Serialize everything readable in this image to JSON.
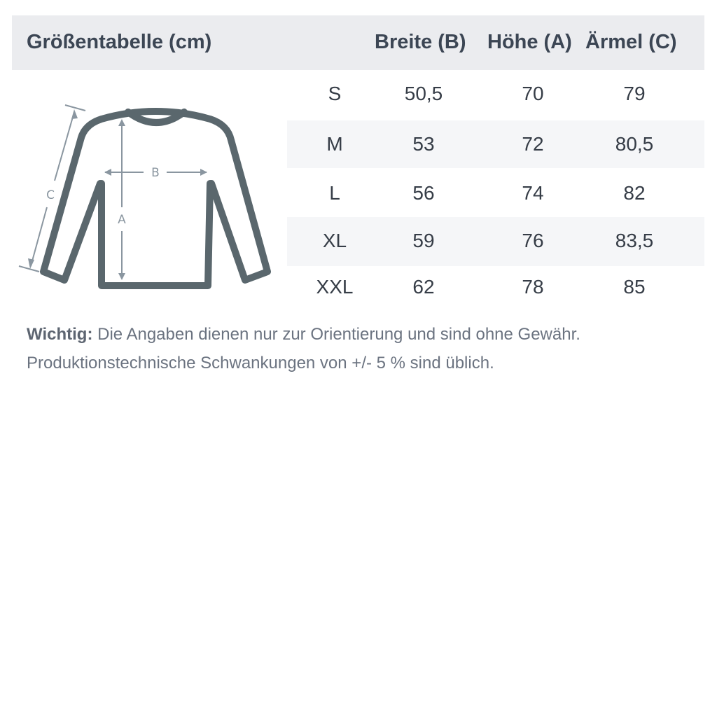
{
  "header": {
    "title": "Größentabelle (cm)",
    "columns": [
      "Breite (B)",
      "Höhe (A)",
      "Ärmel (C)"
    ]
  },
  "diagram": {
    "labels": {
      "a": "A",
      "b": "B",
      "c": "C"
    },
    "icon": "long-sleeve-shirt-icon"
  },
  "rows": [
    {
      "size": "S",
      "breite": "50,5",
      "hoehe": "70",
      "aermel": "79"
    },
    {
      "size": "M",
      "breite": "53",
      "hoehe": "72",
      "aermel": "80,5"
    },
    {
      "size": "L",
      "breite": "56",
      "hoehe": "74",
      "aermel": "82"
    },
    {
      "size": "XL",
      "breite": "59",
      "hoehe": "76",
      "aermel": "83,5"
    },
    {
      "size": "XXL",
      "breite": "62",
      "hoehe": "78",
      "aermel": "85"
    }
  ],
  "note": {
    "label": "Wichtig:",
    "line1": "Die Angaben dienen nur zur Orientierung und sind ohne Gewähr.",
    "line2": "Produktionstechnische Schwankungen von +/- 5 % sind üblich."
  },
  "colors": {
    "header_bg": "#ebecef",
    "text": "#3c4654",
    "shirt": "#5a676d",
    "arrows": "#8a96a0"
  }
}
